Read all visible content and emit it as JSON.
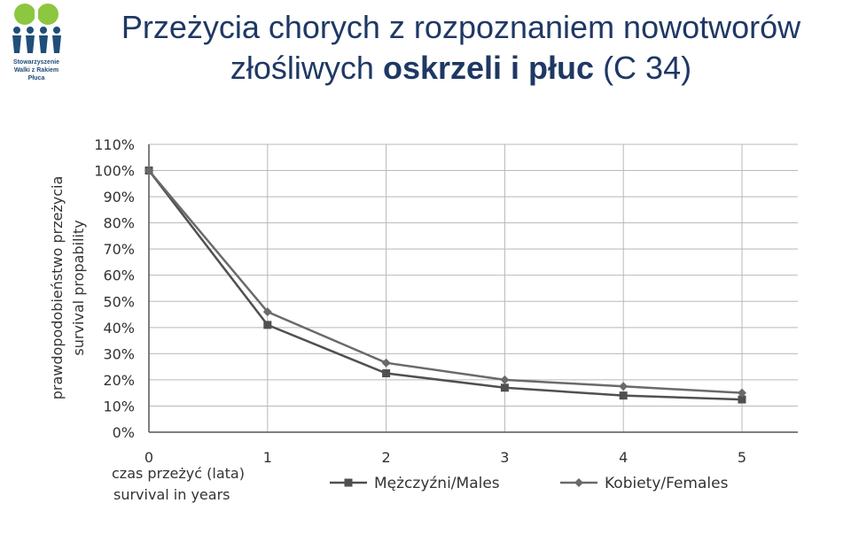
{
  "header": {
    "logo_line1": "Stowarzyszenie",
    "logo_line2": "Walki z Rakiem Płuca",
    "title_line1": "Przeżycia chorych z rozpoznaniem nowotworów",
    "title_line2_normal": "złośliwych",
    "title_line2_bold": "oskrzeli i płuc",
    "title_line2_end": "(C 34)"
  },
  "colors": {
    "males": "#505050",
    "females": "#6a6a6a",
    "grid": "#b8b8b8",
    "title": "#1f3864",
    "logo_green": "#8dc63f",
    "logo_blue": "#1f4e79"
  },
  "chart_data": {
    "type": "line",
    "x": [
      0,
      1,
      2,
      3,
      4,
      5
    ],
    "x_ticks": [
      "0",
      "1",
      "2",
      "3",
      "4",
      "5"
    ],
    "y_ticks": [
      "0%",
      "10%",
      "20%",
      "30%",
      "40%",
      "50%",
      "60%",
      "70%",
      "80%",
      "90%",
      "100%",
      "110%"
    ],
    "ylim": [
      0,
      110
    ],
    "ylabel_line1": "prawdopodobieństwo przeżycia",
    "ylabel_line2": "survival propability",
    "xlabel_line1": "czas przeżyć (lata)",
    "xlabel_line2": "survival in years",
    "grid": true,
    "legend_position": "bottom",
    "series": [
      {
        "name": "Mężczyźni/Males",
        "marker": "square",
        "values": [
          100,
          41,
          22.5,
          17,
          14,
          12.5
        ]
      },
      {
        "name": "Kobiety/Females",
        "marker": "diamond",
        "values": [
          100,
          46,
          26.5,
          20,
          17.5,
          15
        ]
      }
    ]
  }
}
